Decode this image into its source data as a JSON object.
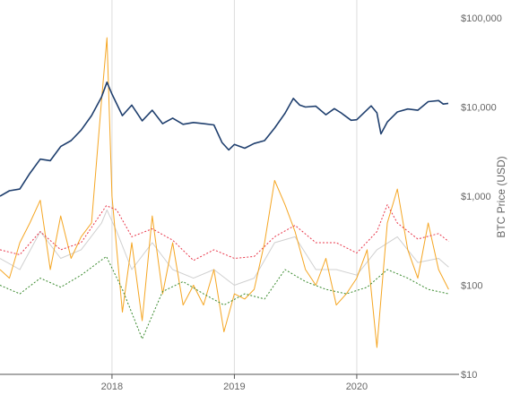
{
  "chart_data": {
    "type": "line",
    "title": "",
    "xlabel": "",
    "ylabel": "BTC Price (USD)",
    "y_scale": "log",
    "ylim": [
      10,
      100000
    ],
    "xlim": [
      "2017-02-01",
      "2020-11-01"
    ],
    "x_ticks": [
      {
        "date": "2018-01-01",
        "label": "2018"
      },
      {
        "date": "2019-01-01",
        "label": "2019"
      },
      {
        "date": "2020-01-01",
        "label": "2020"
      }
    ],
    "y_ticks": [
      {
        "value": 100000,
        "label": "$100,000"
      },
      {
        "value": 10000,
        "label": "$10,000"
      },
      {
        "value": 1000,
        "label": "$1,000"
      },
      {
        "value": 100,
        "label": "$100"
      },
      {
        "value": 10,
        "label": "$10"
      }
    ],
    "grid": {
      "vertical": true,
      "horizontal": false
    },
    "legend": "none",
    "series": [
      {
        "color": "#1f3f6e",
        "style": "solid",
        "points": [
          [
            "2017-02-01",
            1000
          ],
          [
            "2017-03-01",
            1150
          ],
          [
            "2017-04-01",
            1200
          ],
          [
            "2017-05-01",
            1800
          ],
          [
            "2017-06-01",
            2600
          ],
          [
            "2017-07-01",
            2500
          ],
          [
            "2017-08-01",
            3600
          ],
          [
            "2017-09-01",
            4200
          ],
          [
            "2017-10-01",
            5500
          ],
          [
            "2017-11-01",
            8000
          ],
          [
            "2017-12-01",
            13000
          ],
          [
            "2017-12-17",
            19000
          ],
          [
            "2018-01-01",
            14000
          ],
          [
            "2018-02-01",
            8000
          ],
          [
            "2018-03-01",
            10500
          ],
          [
            "2018-04-01",
            7000
          ],
          [
            "2018-05-01",
            9200
          ],
          [
            "2018-06-01",
            6500
          ],
          [
            "2018-07-01",
            7500
          ],
          [
            "2018-08-01",
            6400
          ],
          [
            "2018-09-01",
            6700
          ],
          [
            "2018-10-01",
            6500
          ],
          [
            "2018-11-01",
            6300
          ],
          [
            "2018-11-25",
            4000
          ],
          [
            "2018-12-15",
            3300
          ],
          [
            "2019-01-01",
            3800
          ],
          [
            "2019-02-01",
            3450
          ],
          [
            "2019-03-01",
            3900
          ],
          [
            "2019-04-01",
            4200
          ],
          [
            "2019-05-01",
            5800
          ],
          [
            "2019-06-01",
            8500
          ],
          [
            "2019-06-26",
            12500
          ],
          [
            "2019-07-15",
            10500
          ],
          [
            "2019-08-01",
            10000
          ],
          [
            "2019-09-01",
            10200
          ],
          [
            "2019-10-01",
            8200
          ],
          [
            "2019-10-26",
            9600
          ],
          [
            "2019-11-15",
            8600
          ],
          [
            "2019-12-15",
            7100
          ],
          [
            "2020-01-01",
            7200
          ],
          [
            "2020-02-13",
            10300
          ],
          [
            "2020-03-01",
            8600
          ],
          [
            "2020-03-13",
            5000
          ],
          [
            "2020-04-01",
            6800
          ],
          [
            "2020-05-01",
            8800
          ],
          [
            "2020-06-01",
            9500
          ],
          [
            "2020-07-01",
            9200
          ],
          [
            "2020-08-01",
            11500
          ],
          [
            "2020-09-01",
            11800
          ],
          [
            "2020-09-15",
            10800
          ],
          [
            "2020-09-30",
            11000
          ]
        ]
      },
      {
        "color": "#e8374a",
        "style": "dotted",
        "points": [
          [
            "2017-02-01",
            250
          ],
          [
            "2017-04-01",
            220
          ],
          [
            "2017-06-01",
            400
          ],
          [
            "2017-08-01",
            250
          ],
          [
            "2017-10-01",
            300
          ],
          [
            "2017-12-15",
            780
          ],
          [
            "2018-01-15",
            700
          ],
          [
            "2018-03-01",
            350
          ],
          [
            "2018-05-01",
            430
          ],
          [
            "2018-07-01",
            320
          ],
          [
            "2018-09-01",
            190
          ],
          [
            "2018-11-01",
            250
          ],
          [
            "2019-01-01",
            200
          ],
          [
            "2019-03-01",
            210
          ],
          [
            "2019-05-01",
            350
          ],
          [
            "2019-07-01",
            470
          ],
          [
            "2019-09-01",
            300
          ],
          [
            "2019-11-01",
            300
          ],
          [
            "2020-01-01",
            230
          ],
          [
            "2020-03-01",
            400
          ],
          [
            "2020-04-01",
            800
          ],
          [
            "2020-05-01",
            500
          ],
          [
            "2020-07-01",
            330
          ],
          [
            "2020-09-01",
            380
          ],
          [
            "2020-10-01",
            310
          ]
        ]
      },
      {
        "color": "#3a8a2e",
        "style": "dotted",
        "points": [
          [
            "2017-02-01",
            100
          ],
          [
            "2017-04-01",
            80
          ],
          [
            "2017-06-01",
            120
          ],
          [
            "2017-08-01",
            95
          ],
          [
            "2017-10-01",
            130
          ],
          [
            "2017-12-15",
            210
          ],
          [
            "2018-02-01",
            90
          ],
          [
            "2018-04-01",
            25
          ],
          [
            "2018-06-01",
            85
          ],
          [
            "2018-08-01",
            110
          ],
          [
            "2018-10-01",
            80
          ],
          [
            "2018-12-01",
            60
          ],
          [
            "2019-02-01",
            80
          ],
          [
            "2019-04-01",
            70
          ],
          [
            "2019-06-01",
            150
          ],
          [
            "2019-08-01",
            110
          ],
          [
            "2019-10-01",
            90
          ],
          [
            "2019-12-01",
            80
          ],
          [
            "2020-02-01",
            95
          ],
          [
            "2020-04-01",
            150
          ],
          [
            "2020-06-01",
            120
          ],
          [
            "2020-08-01",
            90
          ],
          [
            "2020-10-01",
            80
          ]
        ]
      },
      {
        "color": "#f5a623",
        "style": "solid",
        "points": [
          [
            "2017-02-01",
            150
          ],
          [
            "2017-03-01",
            120
          ],
          [
            "2017-04-01",
            300
          ],
          [
            "2017-05-01",
            500
          ],
          [
            "2017-06-01",
            900
          ],
          [
            "2017-07-01",
            150
          ],
          [
            "2017-08-01",
            600
          ],
          [
            "2017-09-01",
            200
          ],
          [
            "2017-10-01",
            350
          ],
          [
            "2017-11-01",
            500
          ],
          [
            "2017-12-01",
            12000
          ],
          [
            "2017-12-17",
            60000
          ],
          [
            "2018-01-01",
            1000
          ],
          [
            "2018-02-01",
            50
          ],
          [
            "2018-03-01",
            300
          ],
          [
            "2018-04-01",
            40
          ],
          [
            "2018-05-01",
            600
          ],
          [
            "2018-06-01",
            80
          ],
          [
            "2018-07-01",
            300
          ],
          [
            "2018-08-01",
            60
          ],
          [
            "2018-09-01",
            100
          ],
          [
            "2018-10-01",
            60
          ],
          [
            "2018-11-01",
            150
          ],
          [
            "2018-12-01",
            30
          ],
          [
            "2019-01-01",
            80
          ],
          [
            "2019-02-01",
            70
          ],
          [
            "2019-03-01",
            90
          ],
          [
            "2019-04-01",
            300
          ],
          [
            "2019-05-01",
            1500
          ],
          [
            "2019-06-01",
            800
          ],
          [
            "2019-07-01",
            400
          ],
          [
            "2019-08-01",
            150
          ],
          [
            "2019-09-01",
            100
          ],
          [
            "2019-10-01",
            200
          ],
          [
            "2019-11-01",
            60
          ],
          [
            "2019-12-01",
            80
          ],
          [
            "2020-01-01",
            120
          ],
          [
            "2020-02-01",
            250
          ],
          [
            "2020-03-01",
            20
          ],
          [
            "2020-04-01",
            500
          ],
          [
            "2020-05-01",
            1200
          ],
          [
            "2020-06-01",
            250
          ],
          [
            "2020-07-01",
            120
          ],
          [
            "2020-08-01",
            500
          ],
          [
            "2020-09-01",
            150
          ],
          [
            "2020-10-01",
            90
          ]
        ]
      },
      {
        "color": "#d0d0d0",
        "style": "solid",
        "points": [
          [
            "2017-02-01",
            200
          ],
          [
            "2017-04-01",
            150
          ],
          [
            "2017-06-01",
            400
          ],
          [
            "2017-08-01",
            200
          ],
          [
            "2017-10-01",
            250
          ],
          [
            "2017-12-01",
            500
          ],
          [
            "2017-12-17",
            700
          ],
          [
            "2018-01-15",
            400
          ],
          [
            "2018-03-01",
            150
          ],
          [
            "2018-05-01",
            300
          ],
          [
            "2018-07-01",
            150
          ],
          [
            "2018-09-01",
            120
          ],
          [
            "2018-11-01",
            150
          ],
          [
            "2019-01-01",
            100
          ],
          [
            "2019-03-01",
            120
          ],
          [
            "2019-05-01",
            300
          ],
          [
            "2019-07-01",
            350
          ],
          [
            "2019-09-01",
            150
          ],
          [
            "2019-11-01",
            150
          ],
          [
            "2020-01-01",
            130
          ],
          [
            "2020-03-01",
            250
          ],
          [
            "2020-05-01",
            350
          ],
          [
            "2020-07-01",
            180
          ],
          [
            "2020-09-01",
            200
          ],
          [
            "2020-10-01",
            160
          ]
        ]
      }
    ]
  }
}
